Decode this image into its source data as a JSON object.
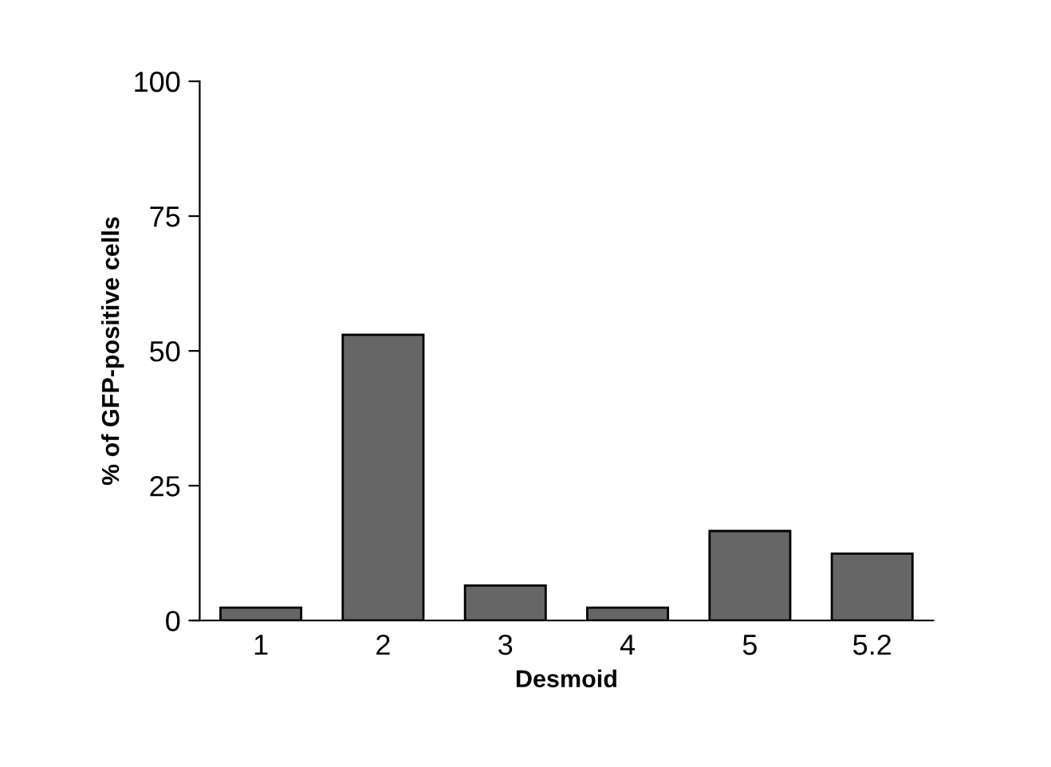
{
  "chart_data": {
    "type": "bar",
    "xlabel": "Desmoid",
    "ylabel": "% of GFP-positive cells",
    "categories": [
      "1",
      "2",
      "3",
      "4",
      "5",
      "5.2"
    ],
    "values": [
      2.4,
      53,
      6.5,
      2.4,
      16.6,
      12.4
    ],
    "color": "#666666",
    "ylim": [
      0,
      100
    ],
    "yticks": [
      0,
      25,
      50,
      75,
      100
    ],
    "grid": false,
    "legend": false
  }
}
